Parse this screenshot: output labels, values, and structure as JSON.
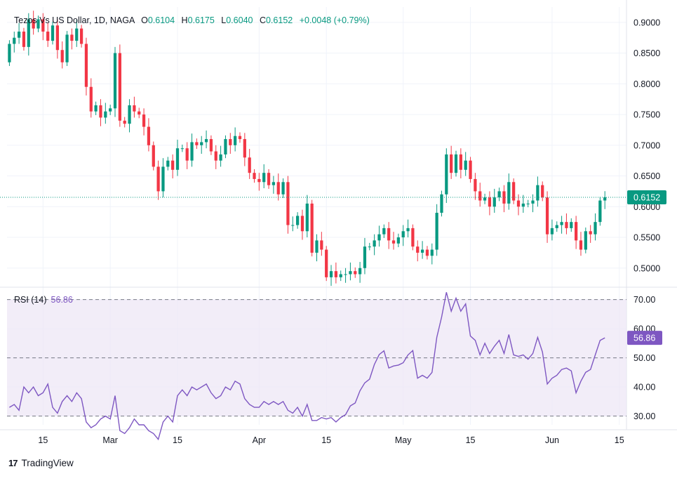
{
  "legend": {
    "symbol": "Tezos Vs US Dollar, 1D, NAGA",
    "open_label": "O",
    "open": "0.6104",
    "high_label": "H",
    "high": "0.6175",
    "low_label": "L",
    "low": "0.6040",
    "close_label": "C",
    "close": "0.6152",
    "change": "+0.0048 (+0.79%)"
  },
  "rsi_legend": {
    "label": "RSI (14)",
    "value": "56.86"
  },
  "branding": {
    "name": "TradingView",
    "logo_text": "17"
  },
  "colors": {
    "up": "#089981",
    "down": "#f23645",
    "rsi": "#7e57c2",
    "rsi_band": "#ede7f6",
    "grid": "#f0f3fa",
    "text": "#131722"
  },
  "chart_data": [
    {
      "type": "candlestick",
      "title": "Tezos Vs US Dollar, 1D, NAGA",
      "ylim": [
        0.47,
        0.925
      ],
      "y_ticks": [
        "0.9000",
        "0.8500",
        "0.8000",
        "0.7500",
        "0.7000",
        "0.6500",
        "0.6000",
        "0.5500",
        "0.5000"
      ],
      "y_tick_values": [
        0.9,
        0.85,
        0.8,
        0.75,
        0.7,
        0.65,
        0.6,
        0.55,
        0.5
      ],
      "last_price": 0.6152,
      "last_price_label": "0.6152",
      "x_ticks": [
        {
          "label": "15",
          "index": 7
        },
        {
          "label": "Mar",
          "index": 21
        },
        {
          "label": "15",
          "index": 35
        },
        {
          "label": "Apr",
          "index": 52
        },
        {
          "label": "15",
          "index": 66
        },
        {
          "label": "May",
          "index": 82
        },
        {
          "label": "15",
          "index": 96
        },
        {
          "label": "Jun",
          "index": 113
        },
        {
          "label": "15",
          "index": 127
        }
      ],
      "index_range": [
        -0.5,
        128.5
      ],
      "closes": [
        0.865,
        0.875,
        0.885,
        0.86,
        0.905,
        0.89,
        0.905,
        0.885,
        0.87,
        0.895,
        0.855,
        0.835,
        0.88,
        0.87,
        0.89,
        0.865,
        0.795,
        0.755,
        0.765,
        0.745,
        0.755,
        0.76,
        0.85,
        0.74,
        0.735,
        0.765,
        0.755,
        0.75,
        0.73,
        0.7,
        0.665,
        0.625,
        0.665,
        0.675,
        0.66,
        0.695,
        0.695,
        0.675,
        0.705,
        0.7,
        0.705,
        0.71,
        0.69,
        0.675,
        0.685,
        0.71,
        0.7,
        0.715,
        0.71,
        0.68,
        0.655,
        0.645,
        0.64,
        0.655,
        0.635,
        0.64,
        0.62,
        0.64,
        0.57,
        0.57,
        0.585,
        0.56,
        0.605,
        0.525,
        0.545,
        0.53,
        0.485,
        0.495,
        0.485,
        0.49,
        0.49,
        0.495,
        0.49,
        0.5,
        0.535,
        0.535,
        0.545,
        0.555,
        0.565,
        0.545,
        0.54,
        0.55,
        0.56,
        0.565,
        0.535,
        0.525,
        0.53,
        0.52,
        0.53,
        0.59,
        0.62,
        0.685,
        0.655,
        0.685,
        0.66,
        0.675,
        0.645,
        0.625,
        0.61,
        0.615,
        0.6,
        0.615,
        0.625,
        0.605,
        0.64,
        0.61,
        0.6,
        0.605,
        0.605,
        0.61,
        0.635,
        0.615,
        0.555,
        0.565,
        0.57,
        0.575,
        0.565,
        0.575,
        0.545,
        0.53,
        0.56,
        0.555,
        0.575,
        0.61,
        0.6152
      ],
      "rsi": {
        "title": "RSI (14)",
        "ylim": [
          27,
          74
        ],
        "y_ticks": [
          "70.00",
          "60.00",
          "50.00",
          "40.00",
          "30.00"
        ],
        "y_tick_values": [
          70,
          60,
          50,
          40,
          30
        ],
        "band": [
          30,
          70
        ],
        "mid_line": 50,
        "last_value_label": "56.86",
        "values": [
          33,
          34,
          32,
          40,
          38,
          40,
          37,
          38,
          41,
          33,
          31,
          35,
          37,
          35,
          38,
          36,
          28,
          26,
          27,
          29,
          30,
          29,
          37,
          25,
          24,
          26,
          29,
          27,
          27,
          25,
          24,
          22,
          28,
          30,
          28,
          37,
          39,
          37,
          40,
          39,
          40,
          41,
          38,
          36,
          37,
          40,
          39,
          42,
          41,
          36,
          34,
          33,
          33,
          35,
          34,
          35,
          34,
          35,
          32,
          31,
          33,
          30,
          34,
          28.5,
          28.5,
          29.5,
          29,
          29.5,
          28,
          29.5,
          30.5,
          33.5,
          34.5,
          38.7,
          41.4,
          42.7,
          47.7,
          51.1,
          52.4,
          46.5,
          47.2,
          47.5,
          48.3,
          51,
          52.5,
          43,
          44,
          43,
          45,
          57,
          64,
          72.5,
          66,
          70.5,
          66,
          68.5,
          57.5,
          56,
          51,
          55,
          51.5,
          54,
          56,
          51.5,
          58,
          51,
          50.5,
          51,
          49.5,
          51.5,
          57,
          52,
          41,
          43,
          44,
          46,
          46.5,
          45.5,
          38,
          42,
          45,
          46,
          51,
          56,
          56.86
        ]
      }
    }
  ]
}
